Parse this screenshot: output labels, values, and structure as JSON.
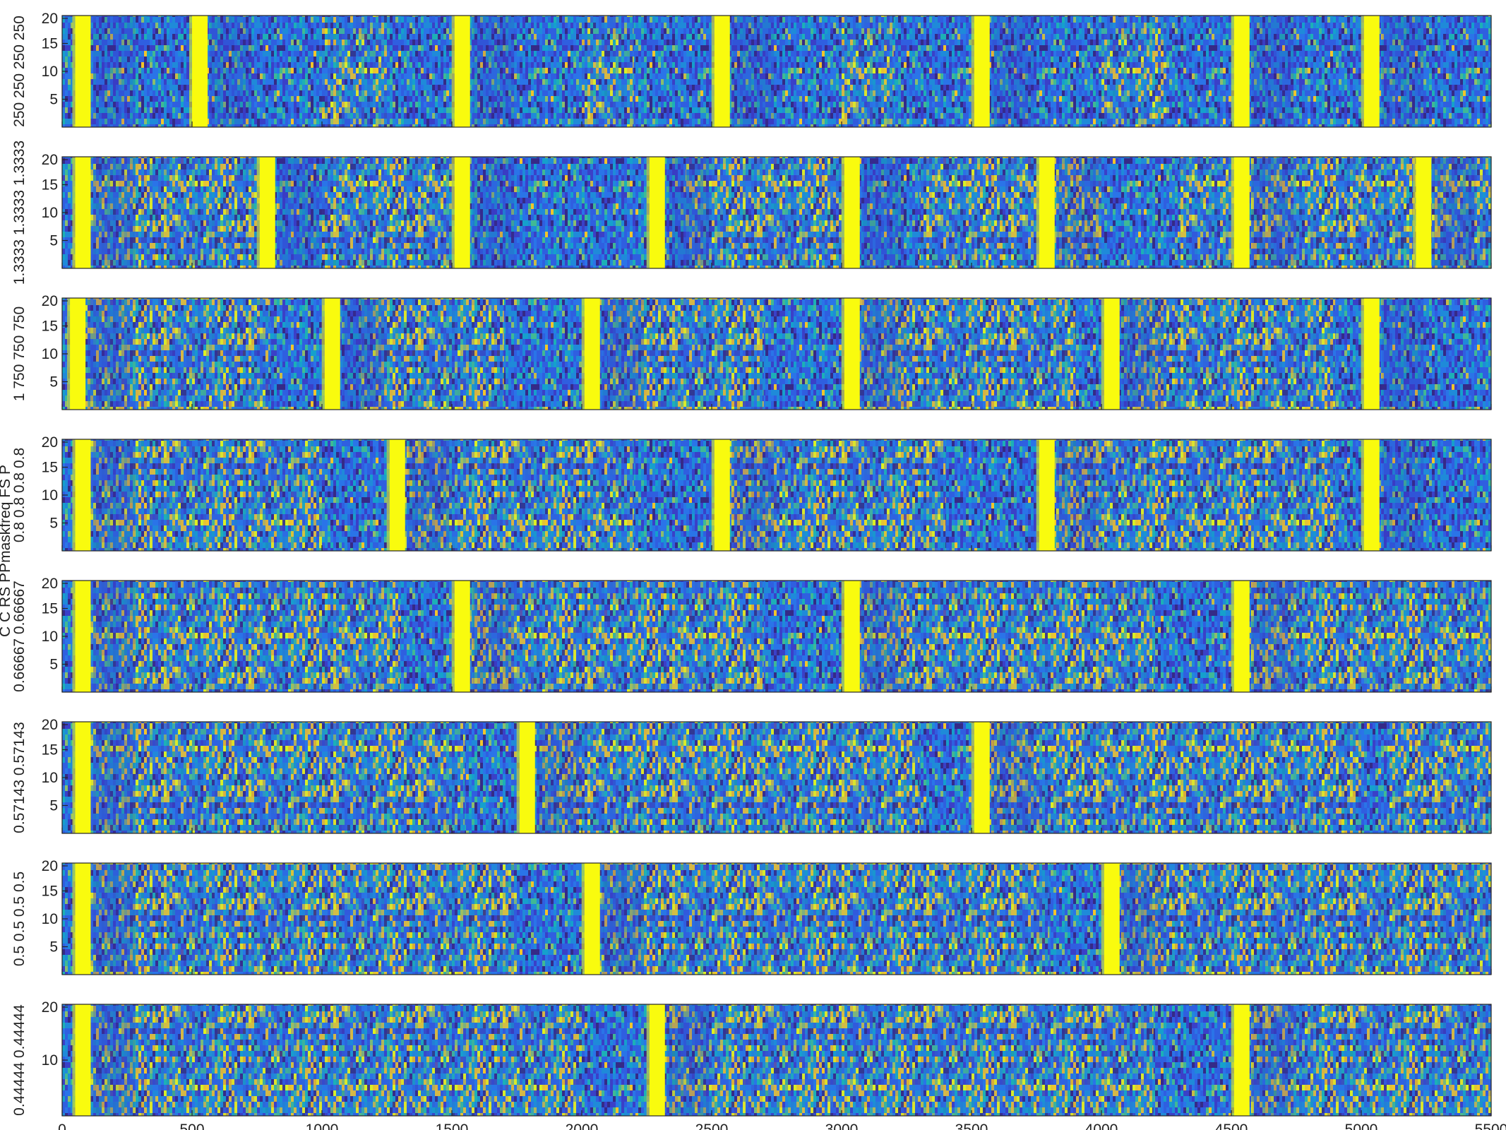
{
  "chart_data": {
    "type": "heatmap",
    "title": "",
    "xlabel": "",
    "ylabel": "C C RS PPmaskfreq FS P",
    "xlim": [
      0,
      5500
    ],
    "x_ticks": [
      0,
      500,
      1000,
      1500,
      2000,
      2500,
      3000,
      3500,
      4000,
      4500,
      5000,
      5500
    ],
    "colormap": "parula",
    "colors": {
      "low": "#3e26a8",
      "mid": "#2b9bd8",
      "high": "#f9fb0e"
    },
    "panels": [
      {
        "row_label": "250 250 250 250",
        "y_ticks": [
          5,
          10,
          15,
          20
        ],
        "rows": 20,
        "bright_bands": [
          80,
          530,
          1540,
          2540,
          3540,
          4540,
          5040
        ],
        "speckle_regions": [
          [
            1000,
            1250
          ],
          [
            2000,
            2200
          ],
          [
            3000,
            3200
          ],
          [
            4000,
            4250
          ]
        ]
      },
      {
        "row_label": "1.3333 1.3333 1.3333",
        "y_ticks": [
          5,
          10,
          15,
          20
        ],
        "rows": 20,
        "bright_bands": [
          80,
          790,
          1540,
          2290,
          3040,
          3790,
          4540,
          5240
        ],
        "speckle_regions": [
          [
            100,
            800
          ],
          [
            1000,
            1500
          ],
          [
            2400,
            3000
          ],
          [
            3300,
            4000
          ],
          [
            4300,
            5500
          ]
        ]
      },
      {
        "row_label": "1 750 750 750",
        "y_ticks": [
          5,
          10,
          15,
          20
        ],
        "rows": 20,
        "bright_bands": [
          60,
          1040,
          2040,
          3040,
          4040,
          5040
        ],
        "speckle_regions": [
          [
            60,
            800
          ],
          [
            1150,
            1700
          ],
          [
            2100,
            2700
          ],
          [
            3050,
            3900
          ],
          [
            4100,
            4900
          ]
        ]
      },
      {
        "row_label": "0.8 0.8 0.8 0.8",
        "y_ticks": [
          5,
          10,
          15,
          20
        ],
        "rows": 20,
        "bright_bands": [
          80,
          1290,
          2540,
          3790,
          5040
        ],
        "speckle_regions": [
          [
            100,
            1000
          ],
          [
            1300,
            2200
          ],
          [
            2560,
            3400
          ],
          [
            3800,
            4900
          ]
        ]
      },
      {
        "row_label": "0.66667 0.66667",
        "y_ticks": [
          5,
          10,
          15,
          20
        ],
        "rows": 20,
        "bright_bands": [
          80,
          1540,
          3040,
          4540
        ],
        "speckle_regions": [
          [
            100,
            1300
          ],
          [
            1560,
            2700
          ],
          [
            3060,
            4200
          ],
          [
            4560,
            5500
          ]
        ]
      },
      {
        "row_label": "0.57143 0.57143",
        "y_ticks": [
          5,
          10,
          15,
          20
        ],
        "rows": 20,
        "bright_bands": [
          80,
          1790,
          3540
        ],
        "speckle_regions": [
          [
            100,
            1550
          ],
          [
            1800,
            3300
          ],
          [
            3560,
            5000
          ],
          [
            5100,
            5500
          ]
        ]
      },
      {
        "row_label": "0.5 0.5 0.5 0.5",
        "y_ticks": [
          5,
          10,
          15,
          20
        ],
        "rows": 20,
        "bright_bands": [
          80,
          2040,
          4040
        ],
        "speckle_regions": [
          [
            100,
            1750
          ],
          [
            2060,
            3800
          ],
          [
            4060,
            5500
          ]
        ]
      },
      {
        "row_label": "0.44444 0.44444",
        "y_ticks": [
          10,
          20
        ],
        "rows": 20,
        "bright_bands": [
          80,
          2290,
          4540
        ],
        "speckle_regions": [
          [
            100,
            2000
          ],
          [
            2300,
            4200
          ],
          [
            4560,
            5500
          ]
        ]
      }
    ]
  }
}
